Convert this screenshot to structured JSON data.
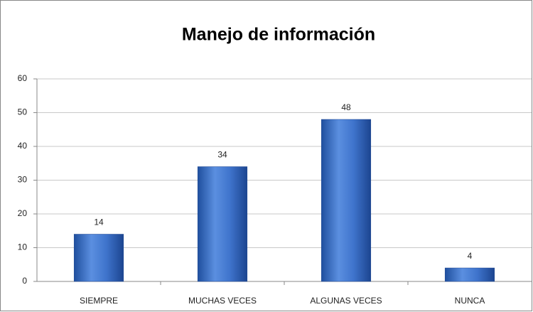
{
  "chart_data": {
    "type": "bar",
    "title": "Manejo de información",
    "categories": [
      "SIEMPRE",
      "MUCHAS VECES",
      "ALGUNAS VECES",
      "NUNCA"
    ],
    "values": [
      14,
      34,
      48,
      4
    ],
    "color": "#3b6fc4",
    "ylim": [
      0,
      60
    ],
    "yticks": [
      0,
      10,
      20,
      30,
      40,
      50,
      60
    ],
    "grid": true
  }
}
